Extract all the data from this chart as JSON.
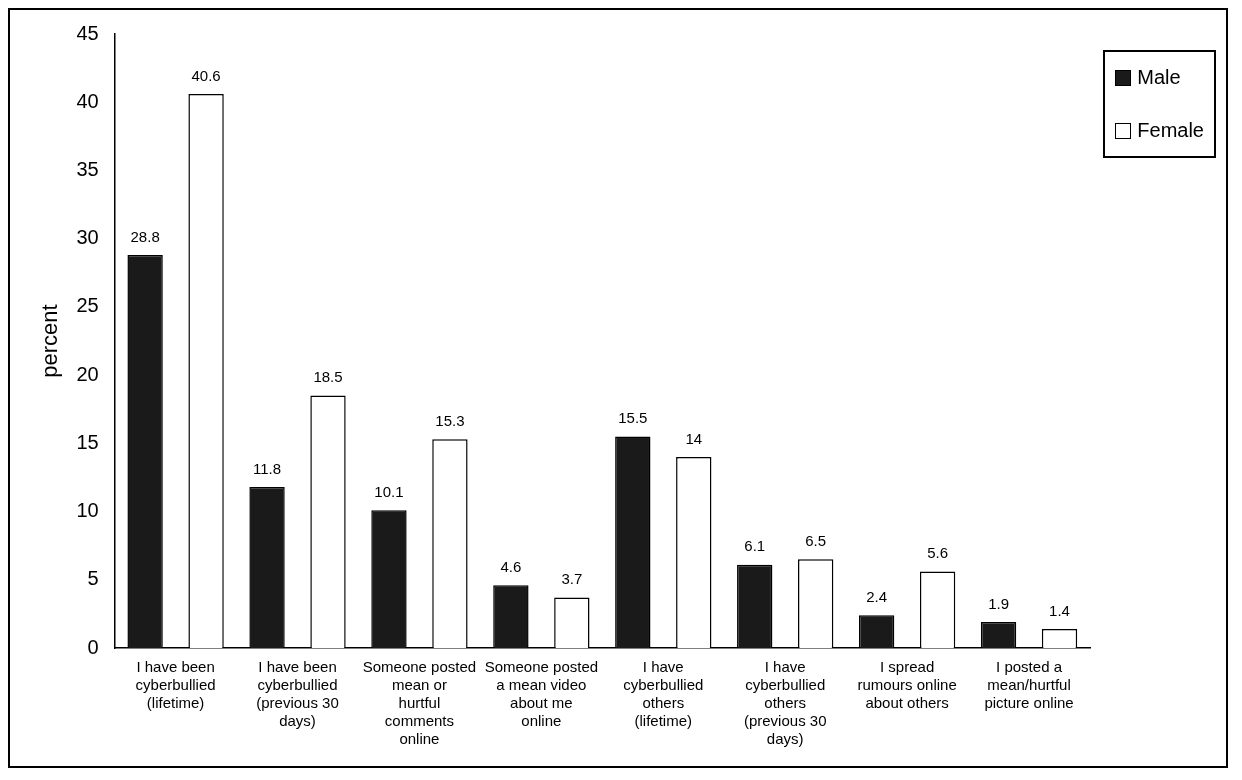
{
  "chart_data": {
    "type": "bar",
    "ylabel": "percent",
    "categories": [
      "I have been cyberbullied (lifetime)",
      "I have been cyberbullied (previous 30 days)",
      "Someone posted mean or hurtful comments online",
      "Someone posted a mean video about me online",
      "I have cyberbullied others (lifetime)",
      "I have cyberbullied others (previous 30 days)",
      "I spread rumours online about others",
      "I posted a mean/hurtful picture online"
    ],
    "series": [
      {
        "name": "Male",
        "color": "#1a1a1a",
        "values": [
          28.8,
          11.8,
          10.1,
          4.6,
          15.5,
          6.1,
          2.4,
          1.9
        ]
      },
      {
        "name": "Female",
        "color": "#ffffff",
        "values": [
          40.6,
          18.5,
          15.3,
          3.7,
          14,
          6.5,
          5.6,
          1.4
        ]
      }
    ],
    "ylim": [
      0,
      45
    ],
    "yticks": [
      0,
      5,
      10,
      15,
      20,
      25,
      30,
      35,
      40,
      45
    ],
    "grid": false,
    "legend": "top right",
    "data_labels": true
  }
}
